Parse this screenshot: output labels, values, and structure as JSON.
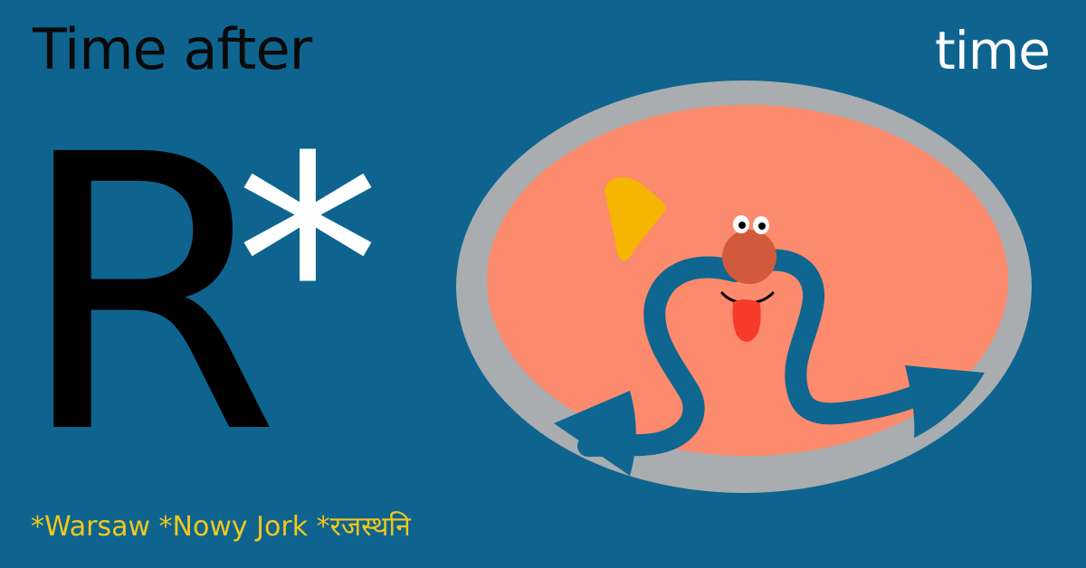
{
  "headline": {
    "left": "Time after",
    "right": "time"
  },
  "logo": {
    "letter": "R",
    "mark": "*"
  },
  "cities": "*Warsaw *Nowy Jork *रजस्थनि",
  "colors": {
    "background": "#0e648f",
    "headline_left": "#0a0a0a",
    "headline_right": "#ffffff",
    "cities": "#f2c81b",
    "oval_ring": "#a9adb0",
    "oval_fill": "#fc8a6d",
    "nose": "#d25a3c",
    "tongue": "#f53b2a",
    "squiggle": "#0f6690",
    "sun": "#f5b500"
  }
}
